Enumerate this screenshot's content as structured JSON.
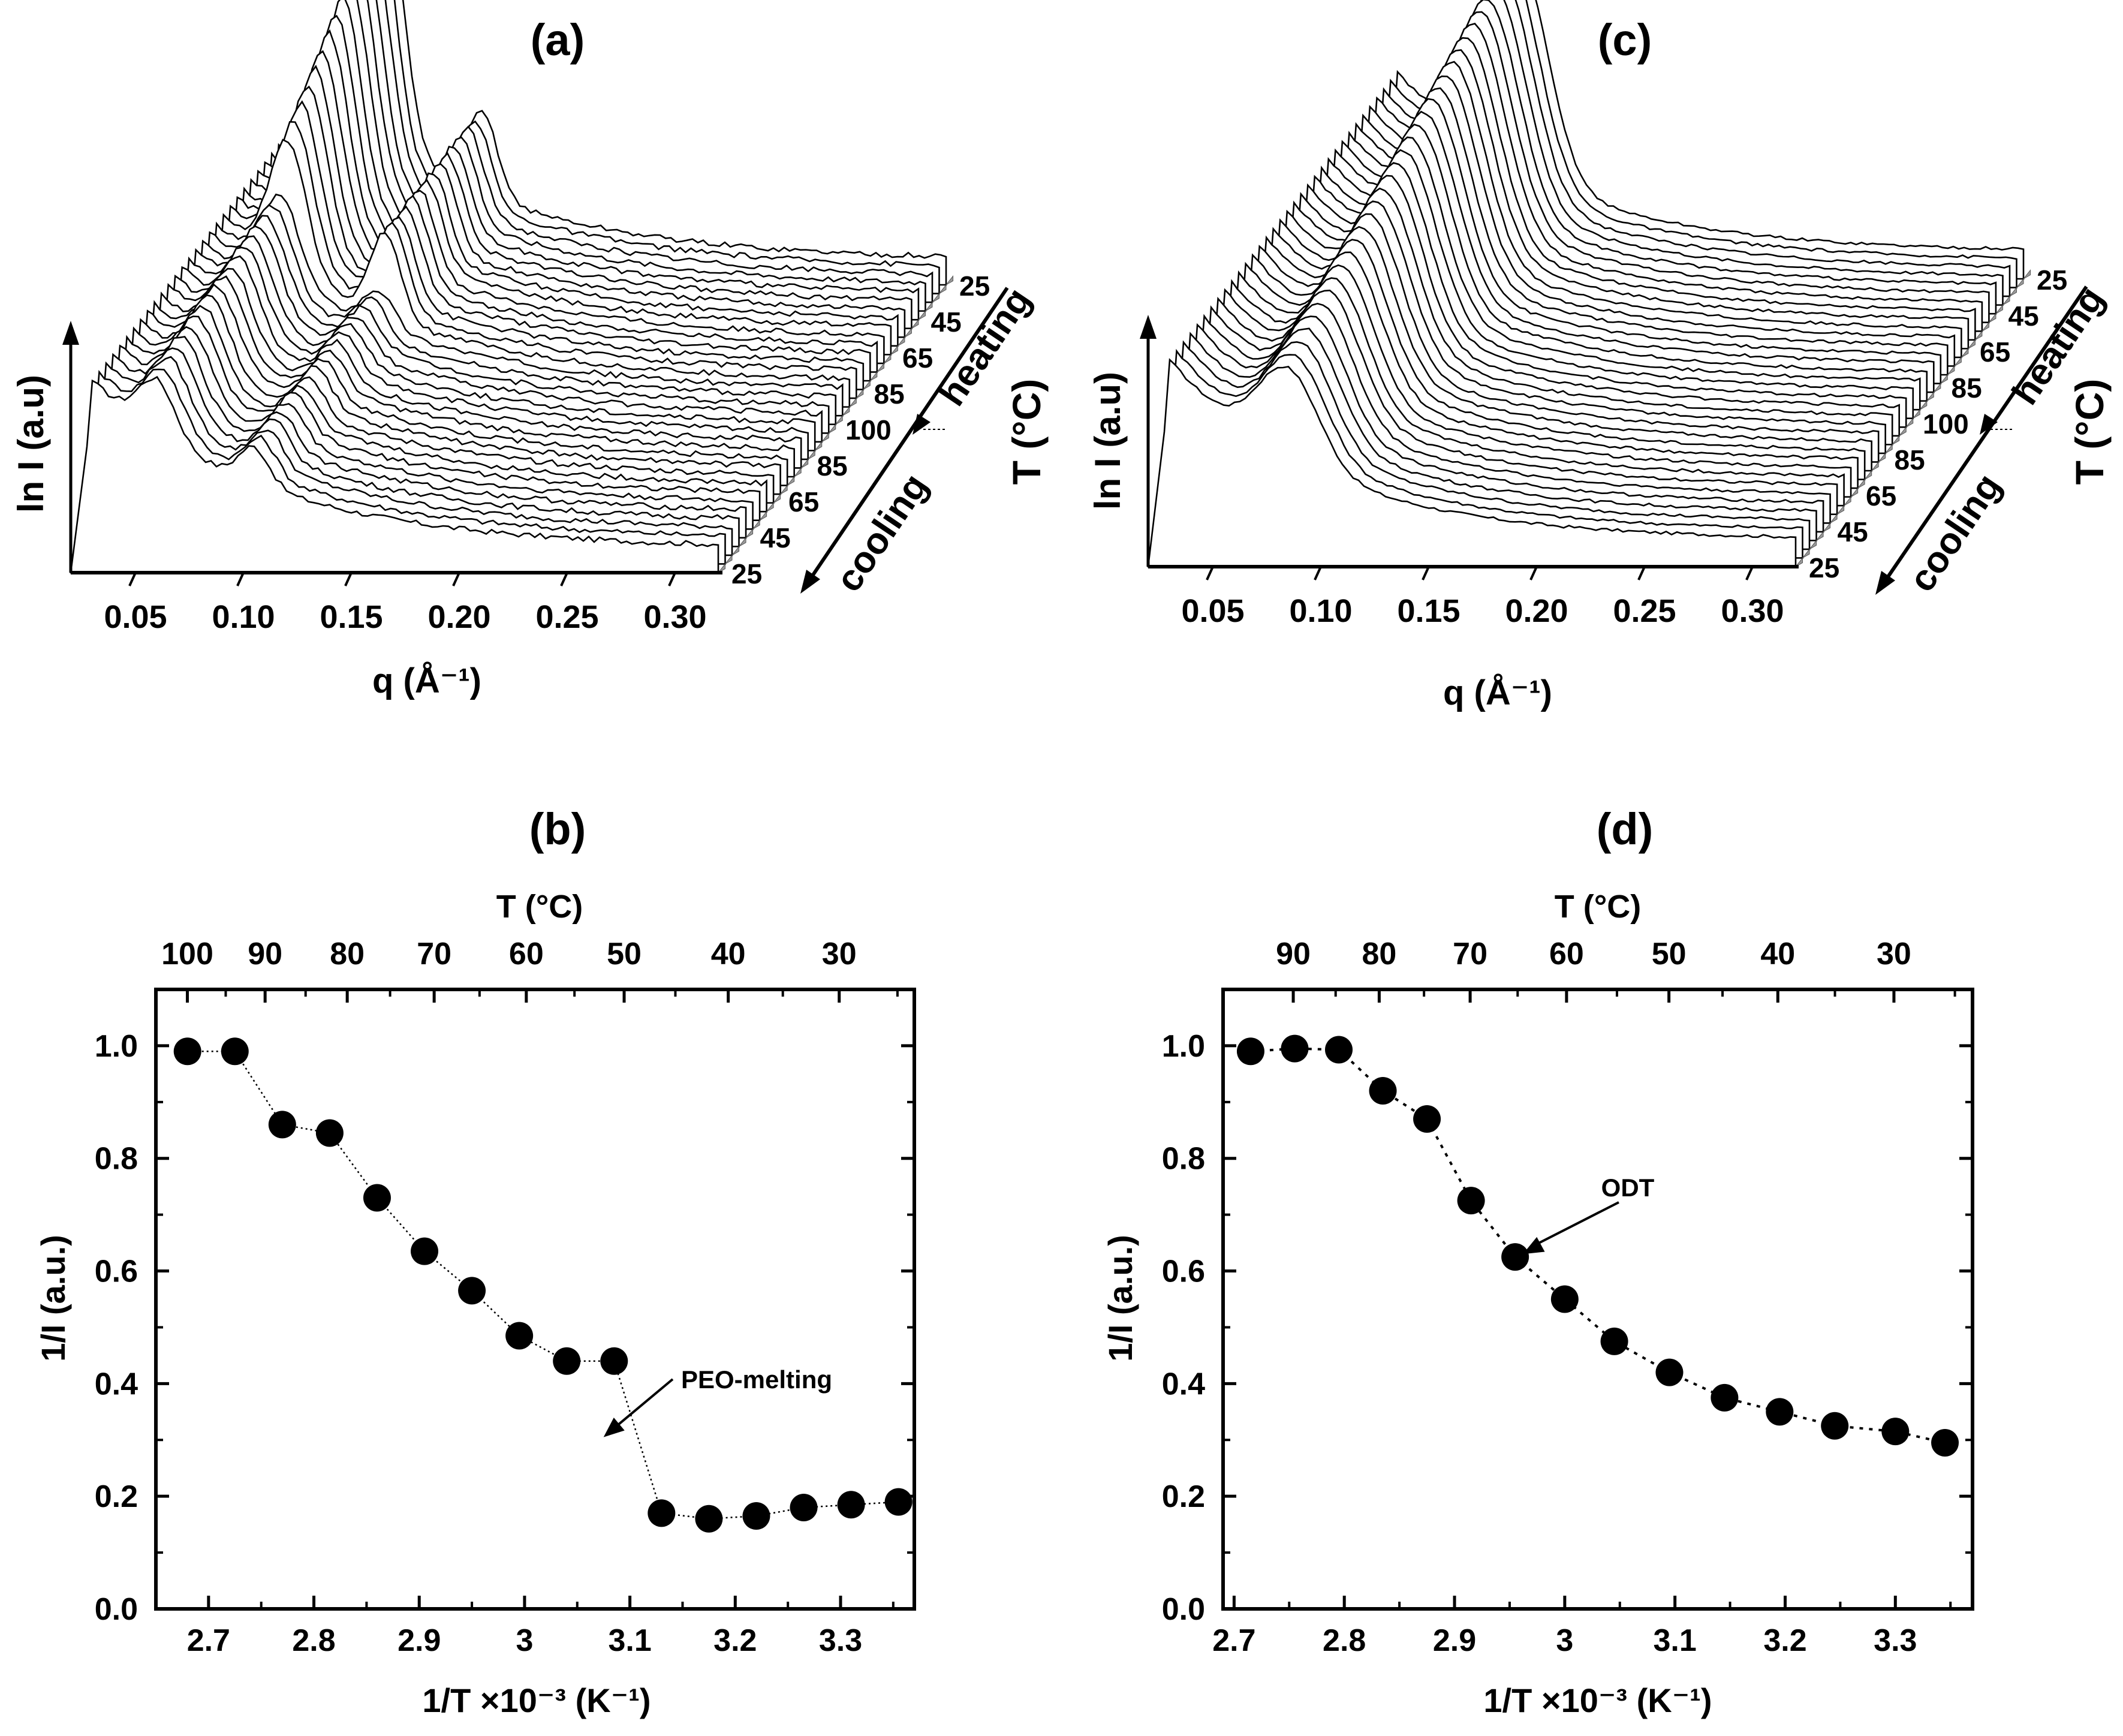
{
  "figure": {
    "panels": {
      "a": "(a)",
      "b": "(b)",
      "c": "(c)",
      "d": "(d)"
    }
  },
  "chart_data": [
    {
      "panel": "(a)",
      "type": "line",
      "title": "(a)",
      "xlabel": "q (Å⁻¹)",
      "ylabel": "ln I (a.u)",
      "xlim": [
        0.02,
        0.32
      ],
      "xticks": [
        "0.05",
        "0.10",
        "0.15",
        "0.20",
        "0.25",
        "0.30"
      ],
      "depth_axis_label": "T (°C)",
      "depth_ticks": [
        "25",
        "45",
        "65",
        "85",
        "100",
        "85",
        "65",
        "45",
        "25"
      ],
      "direction_labels": [
        "heating",
        "cooling"
      ],
      "series_count": 34,
      "peak_q": 0.1,
      "description_values": {
        "first_peak_q": 0.05,
        "second_peak_q": 0.1
      }
    },
    {
      "panel": "(c)",
      "type": "line",
      "title": "(c)",
      "xlabel": "q (Å⁻¹)",
      "ylabel": "ln I (a.u)",
      "xlim": [
        0.02,
        0.32
      ],
      "xticks": [
        "0.05",
        "0.10",
        "0.15",
        "0.20",
        "0.25",
        "0.30"
      ],
      "depth_axis_label": "T (°C)",
      "depth_ticks": [
        "25",
        "45",
        "65",
        "85",
        "100",
        "85",
        "65",
        "45",
        "25"
      ],
      "direction_labels": [
        "heating",
        "cooling"
      ],
      "series_count": 34,
      "peak_q": 0.085
    },
    {
      "panel": "(b)",
      "type": "scatter",
      "title": "(b)",
      "xlabel": "1/T ×10⁻³ (K⁻¹)",
      "ylabel": "1/I  (a.u.)",
      "top_xlabel": "T (°C)",
      "xlim": [
        2.65,
        3.37
      ],
      "ylim": [
        0.0,
        1.1
      ],
      "xticks": [
        "2.7",
        "2.8",
        "2.9",
        "3",
        "3.1",
        "3.2",
        "3.3"
      ],
      "yticks": [
        "0.0",
        "0.2",
        "0.4",
        "0.6",
        "0.8",
        "1.0"
      ],
      "top_ticks": [
        "100",
        "90",
        "80",
        "70",
        "60",
        "50",
        "40",
        "30"
      ],
      "x": [
        2.68,
        2.725,
        2.77,
        2.815,
        2.86,
        2.905,
        2.95,
        2.995,
        3.04,
        3.085,
        3.13,
        3.175,
        3.22,
        3.265,
        3.31,
        3.355
      ],
      "y": [
        0.99,
        0.99,
        0.86,
        0.845,
        0.73,
        0.635,
        0.565,
        0.485,
        0.44,
        0.44,
        0.17,
        0.16,
        0.165,
        0.18,
        0.185,
        0.19
      ],
      "annotation": "PEO-melting",
      "annotation_point": [
        3.075,
        0.305
      ]
    },
    {
      "panel": "(d)",
      "type": "scatter",
      "title": "(d)",
      "xlabel": "1/T ×10⁻³ (K⁻¹)",
      "ylabel": "1/I  (a.u.)",
      "top_xlabel": "T (°C)",
      "xlim": [
        2.69,
        3.37
      ],
      "ylim": [
        0.0,
        1.1
      ],
      "xticks": [
        "2.7",
        "2.8",
        "2.9",
        "3",
        "3.1",
        "3.2",
        "3.3"
      ],
      "yticks": [
        "0.0",
        "0.2",
        "0.4",
        "0.6",
        "0.8",
        "1.0"
      ],
      "top_ticks": [
        "90",
        "80",
        "70",
        "60",
        "50",
        "40",
        "30"
      ],
      "x": [
        2.715,
        2.755,
        2.795,
        2.835,
        2.875,
        2.915,
        2.955,
        3.0,
        3.045,
        3.095,
        3.145,
        3.195,
        3.245,
        3.3,
        3.345
      ],
      "y": [
        0.99,
        0.995,
        0.993,
        0.92,
        0.87,
        0.725,
        0.625,
        0.55,
        0.475,
        0.42,
        0.375,
        0.35,
        0.325,
        0.315,
        0.295
      ],
      "annotation": "ODT",
      "annotation_point": [
        2.962,
        0.63
      ]
    }
  ]
}
